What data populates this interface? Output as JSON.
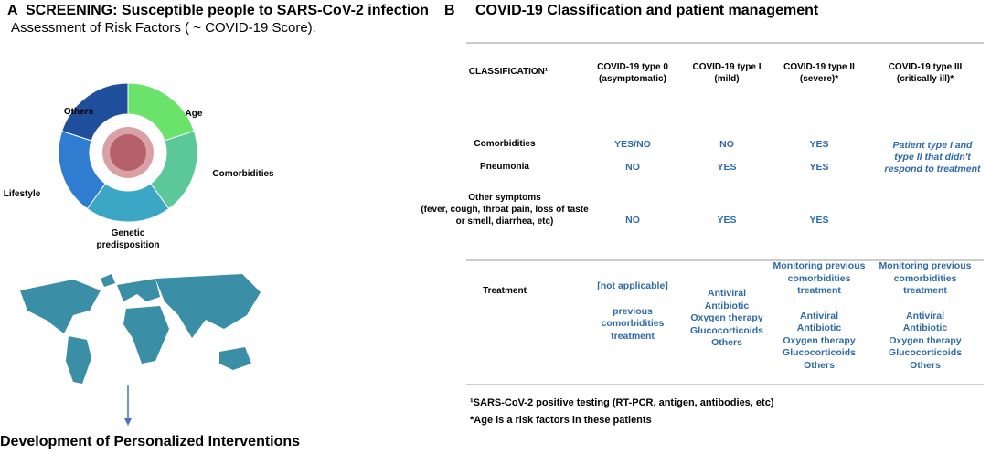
{
  "panel_a": {
    "letter": "A",
    "title": "SCREENING: Susceptible people to SARS-CoV-2 infection",
    "subtitle": "Assessment of Risk Factors ( ~ COVID-19 Score).",
    "factors": [
      [
        "Age"
      ],
      [
        "Comorbidities"
      ],
      [
        "Genetic",
        "predisposition"
      ],
      [
        "Lifestyle"
      ],
      [
        "Others"
      ]
    ],
    "footer": "Development of Personalized Interventions"
  },
  "panel_b": {
    "letter": "B",
    "title": "COVID-19 Classification and patient management",
    "header": {
      "label": "CLASSIFICATION¹",
      "columns": [
        [
          "COVID-19 type 0",
          "(asymptomatic)"
        ],
        [
          "COVID-19 type I",
          "(mild)"
        ],
        [
          "COVID-19 type II",
          "(severe)*"
        ],
        [
          "COVID-19 type III",
          "(critically ill)*"
        ]
      ]
    },
    "rows": [
      {
        "label": [
          "Comorbidities"
        ],
        "values": [
          "YES/NO",
          "NO",
          "YES"
        ]
      },
      {
        "label": [
          "Pneumonia"
        ],
        "values": [
          "NO",
          "YES",
          "YES"
        ]
      },
      {
        "label": [
          "Other symptoms",
          "(fever, cough, throat pain, loss of taste",
          "or smell, diarrhea, etc)"
        ],
        "values": [
          "NO",
          "YES",
          "YES"
        ]
      }
    ],
    "type_iii_note": [
      "Patient  type I and",
      "type II that didn't",
      "respond to treatment"
    ],
    "treatment": {
      "label": "Treatment",
      "cells": [
        [
          [
            "[not applicable]"
          ],
          [
            "previous",
            "comorbidities",
            "treatment"
          ]
        ],
        [
          [
            "Antiviral",
            "Antibiotic",
            "Oxygen therapy",
            "Glucocorticoids",
            "Others"
          ]
        ],
        [
          [
            "Monitoring previous",
            "comorbidities",
            "treatment"
          ],
          [
            "Antiviral",
            "Antibiotic",
            "Oxygen therapy",
            "Glucocorticoids",
            "Others"
          ]
        ],
        [
          [
            "Monitoring previous",
            "comorbidities",
            "treatment"
          ],
          [
            "Antiviral",
            "Antibiotic",
            "Oxygen therapy",
            "Glucocorticoids",
            "Others"
          ]
        ]
      ]
    },
    "footnotes": [
      "¹SARS-CoV-2 positive testing (RT-PCR, antigen, antibodies, etc)",
      "*Age is a risk factors in these patients"
    ]
  }
}
